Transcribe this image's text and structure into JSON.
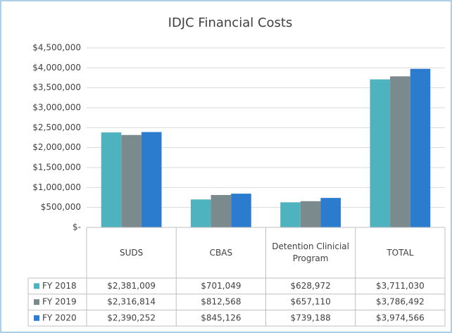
{
  "chart_data": {
    "type": "bar",
    "title": "IDJC Financial Costs",
    "categories": [
      "SUDS",
      "CBAS",
      "Detention Clinicial Program",
      "TOTAL"
    ],
    "series": [
      {
        "name": "FY 2018",
        "color": "#4fb3bf",
        "values": [
          2381009,
          701049,
          628972,
          3711030
        ],
        "value_labels": [
          "$2,381,009",
          "$701,049",
          "$628,972",
          "$3,711,030"
        ]
      },
      {
        "name": "FY 2019",
        "color": "#7b8a8c",
        "values": [
          2316814,
          812568,
          657110,
          3786492
        ],
        "value_labels": [
          "$2,316,814",
          "$812,568",
          "$657,110",
          "$3,786,492"
        ]
      },
      {
        "name": "FY 2020",
        "color": "#2b7bcf",
        "values": [
          2390252,
          845126,
          739188,
          3974566
        ],
        "value_labels": [
          "$2,390,252",
          "$845,126",
          "$739,188",
          "$3,974,566"
        ]
      }
    ],
    "ylim": [
      0,
      4500000
    ],
    "yticks": [
      {
        "value": 0,
        "label": "$-"
      },
      {
        "value": 500000,
        "label": "$500,000"
      },
      {
        "value": 1000000,
        "label": "$1,000,000"
      },
      {
        "value": 1500000,
        "label": "$1,500,000"
      },
      {
        "value": 2000000,
        "label": "$2,000,000"
      },
      {
        "value": 2500000,
        "label": "$2,500,000"
      },
      {
        "value": 3000000,
        "label": "$3,000,000"
      },
      {
        "value": 3500000,
        "label": "$3,500,000"
      },
      {
        "value": 4000000,
        "label": "$4,000,000"
      },
      {
        "value": 4500000,
        "label": "$4,500,000"
      }
    ],
    "grid": true
  }
}
